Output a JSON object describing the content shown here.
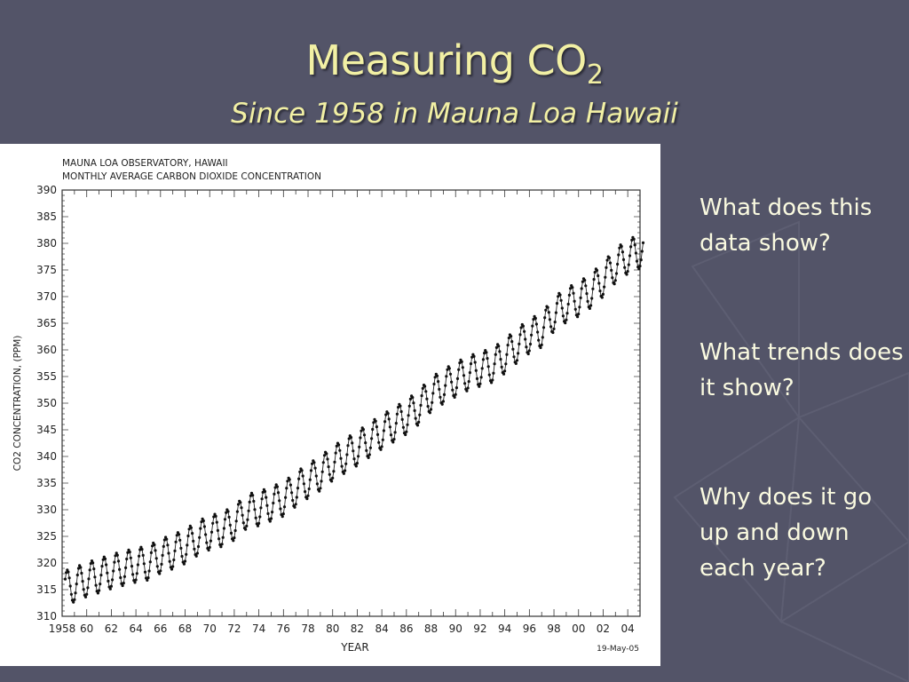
{
  "slide": {
    "title": "Measuring CO",
    "title_subscript": "2",
    "subtitle": "Since 1958 in Mauna Loa Hawaii",
    "questions": [
      "What does this data show?",
      "What trends does it show?",
      "Why does it go up and down each year?"
    ],
    "colors": {
      "background": "#535468",
      "title": "#f2f0a4",
      "body_text": "#fafae0"
    }
  },
  "chart_data": {
    "type": "line",
    "title": "MAUNA LOA OBSERVATORY, HAWAII",
    "subtitle": "MONTHLY AVERAGE CARBON DIOXIDE CONCENTRATION",
    "xlabel": "YEAR",
    "ylabel": "CO2 CONCENTRATION, (PPM)",
    "date_stamp": "19-May-05",
    "xlim": [
      1958,
      2005
    ],
    "ylim": [
      310,
      390
    ],
    "x_ticks": [
      "1958",
      "60",
      "62",
      "64",
      "66",
      "68",
      "70",
      "72",
      "74",
      "76",
      "78",
      "80",
      "82",
      "84",
      "86",
      "88",
      "90",
      "92",
      "94",
      "96",
      "98",
      "00",
      "02",
      "04"
    ],
    "y_ticks": [
      310,
      315,
      320,
      325,
      330,
      335,
      340,
      345,
      350,
      355,
      360,
      365,
      370,
      375,
      380,
      385,
      390
    ],
    "grid": false,
    "series": [
      {
        "values_description_free": true,
        "annual_mean": [
          [
            1958,
            315.2
          ],
          [
            1959,
            315.9
          ],
          [
            1960,
            316.9
          ],
          [
            1961,
            317.6
          ],
          [
            1962,
            318.4
          ],
          [
            1963,
            319.0
          ],
          [
            1964,
            319.6
          ],
          [
            1965,
            320.0
          ],
          [
            1966,
            321.3
          ],
          [
            1967,
            322.1
          ],
          [
            1968,
            323.1
          ],
          [
            1969,
            324.6
          ],
          [
            1970,
            325.7
          ],
          [
            1971,
            326.3
          ],
          [
            1972,
            327.5
          ],
          [
            1973,
            329.7
          ],
          [
            1974,
            330.2
          ],
          [
            1975,
            331.1
          ],
          [
            1976,
            332.0
          ],
          [
            1977,
            333.8
          ],
          [
            1978,
            335.4
          ],
          [
            1979,
            336.8
          ],
          [
            1980,
            338.7
          ],
          [
            1981,
            340.1
          ],
          [
            1982,
            341.5
          ],
          [
            1983,
            343.1
          ],
          [
            1984,
            344.6
          ],
          [
            1985,
            346.0
          ],
          [
            1986,
            347.4
          ],
          [
            1987,
            349.2
          ],
          [
            1988,
            351.6
          ],
          [
            1989,
            353.1
          ],
          [
            1990,
            354.4
          ],
          [
            1991,
            355.6
          ],
          [
            1992,
            356.4
          ],
          [
            1993,
            357.1
          ],
          [
            1994,
            358.8
          ],
          [
            1995,
            360.8
          ],
          [
            1996,
            362.6
          ],
          [
            1997,
            363.7
          ],
          [
            1998,
            366.7
          ],
          [
            1999,
            368.4
          ],
          [
            2000,
            369.5
          ],
          [
            2001,
            371.1
          ],
          [
            2002,
            373.2
          ],
          [
            2003,
            375.8
          ],
          [
            2004,
            377.5
          ],
          [
            2005,
            378.5
          ]
        ],
        "seasonal_amplitude": 3.2,
        "peak_month": 5
      }
    ]
  }
}
